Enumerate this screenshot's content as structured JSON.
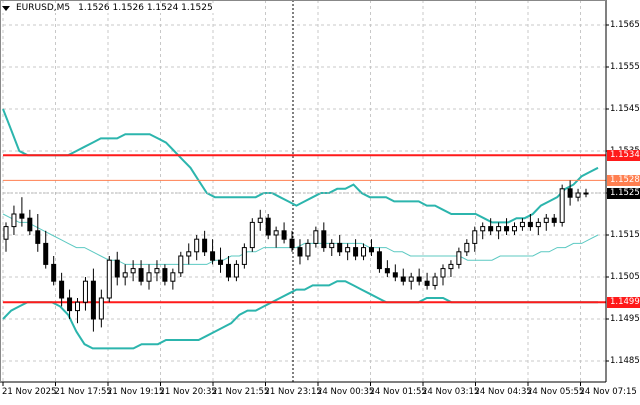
{
  "header": {
    "symbol": "EURUSD,M5",
    "ohlc": "1.1526 1.1526 1.1524 1.1525"
  },
  "colors": {
    "background": "#ffffff",
    "grid": "#c8c8c8",
    "axis": "#000000",
    "band": "#2cb5ad",
    "band_mid": "#5cc9c2",
    "resistance": "#ff1a1a",
    "level_orange": "#ff7f50",
    "price_tag_bg": "#000000",
    "crosshair": "#000000"
  },
  "chart_data": {
    "type": "candlestick",
    "title": "EURUSD,M5",
    "ohlc_display": {
      "open": 1.1526,
      "high": 1.1526,
      "low": 1.1524,
      "close": 1.1525
    },
    "y_ticks": [
      1.1565,
      1.1555,
      1.1545,
      1.1535,
      1.1525,
      1.1515,
      1.1505,
      1.1495,
      1.1485
    ],
    "y_tick_labels": [
      "1.1565",
      "1.1555",
      "1.1545",
      "1.1535",
      "1.1525",
      "1.1515",
      "1.1505",
      "1.1495",
      "1.1485"
    ],
    "ylim": [
      1.1481,
      1.157
    ],
    "x_tick_labels": [
      "21 Nov 2025",
      "21 Nov 17:55",
      "21 Nov 19:15",
      "21 Nov 20:35",
      "21 Nov 21:55",
      "21 Nov 23:15",
      "24 Nov 00:35",
      "24 Nov 01:55",
      "24 Nov 03:15",
      "24 Nov 04:35",
      "24 Nov 05:55",
      "24 Nov 07:15"
    ],
    "horizontal_levels": [
      {
        "price": 1.1534,
        "label": "1.1534",
        "color": "#ff1a1a",
        "width": 2
      },
      {
        "price": 1.1528,
        "label": "1.1528",
        "color": "#ff7f50",
        "width": 1
      },
      {
        "price": 1.1499,
        "label": "1.1499",
        "color": "#ff1a1a",
        "width": 2
      }
    ],
    "current_price": {
      "price": 1.1525,
      "label": "1.1525"
    },
    "grid": true,
    "indicator": "Bollinger Bands",
    "bollinger_upper": [
      1.1545,
      1.154,
      1.1535,
      1.1534,
      1.1534,
      1.1534,
      1.1534,
      1.1534,
      1.1534,
      1.1535,
      1.1536,
      1.1537,
      1.1538,
      1.1538,
      1.1538,
      1.1539,
      1.1539,
      1.1539,
      1.1539,
      1.1538,
      1.1537,
      1.1535,
      1.1533,
      1.1531,
      1.1528,
      1.1525,
      1.1524,
      1.1524,
      1.1524,
      1.1524,
      1.1524,
      1.1524,
      1.1525,
      1.1525,
      1.1524,
      1.1523,
      1.1522,
      1.1523,
      1.1524,
      1.1525,
      1.1525,
      1.1526,
      1.1526,
      1.1527,
      1.1525,
      1.1524,
      1.1524,
      1.1524,
      1.1523,
      1.1523,
      1.1523,
      1.1523,
      1.1522,
      1.1522,
      1.1521,
      1.152,
      1.152,
      1.152,
      1.152,
      1.1519,
      1.1518,
      1.1518,
      1.1518,
      1.1519,
      1.1519,
      1.152,
      1.1522,
      1.1523,
      1.1524,
      1.1526,
      1.1527,
      1.1529,
      1.153,
      1.1531
    ],
    "bollinger_mid": [
      1.152,
      1.1519,
      1.1518,
      1.1518,
      1.1517,
      1.1516,
      1.1515,
      1.1514,
      1.1513,
      1.1512,
      1.1512,
      1.1511,
      1.151,
      1.1509,
      1.1509,
      1.1508,
      1.1508,
      1.1508,
      1.1508,
      1.1508,
      1.1508,
      1.1508,
      1.1508,
      1.1508,
      1.1508,
      1.1508,
      1.1509,
      1.1509,
      1.151,
      1.151,
      1.1511,
      1.1511,
      1.1512,
      1.1512,
      1.1512,
      1.1512,
      1.1512,
      1.1513,
      1.1513,
      1.1513,
      1.1513,
      1.1513,
      1.1513,
      1.1513,
      1.1513,
      1.1512,
      1.1512,
      1.1512,
      1.1511,
      1.1511,
      1.151,
      1.151,
      1.151,
      1.151,
      1.151,
      1.151,
      1.151,
      1.1509,
      1.1509,
      1.1509,
      1.1509,
      1.151,
      1.151,
      1.151,
      1.151,
      1.151,
      1.1511,
      1.1511,
      1.1512,
      1.1512,
      1.1513,
      1.1513,
      1.1514,
      1.1515
    ],
    "bollinger_lower": [
      1.1495,
      1.1497,
      1.1498,
      1.1499,
      1.1499,
      1.1499,
      1.1499,
      1.1498,
      1.1496,
      1.1492,
      1.1489,
      1.1488,
      1.1488,
      1.1488,
      1.1488,
      1.1488,
      1.1488,
      1.1489,
      1.1489,
      1.1489,
      1.149,
      1.149,
      1.149,
      1.149,
      1.149,
      1.1491,
      1.1492,
      1.1493,
      1.1494,
      1.1496,
      1.1497,
      1.1497,
      1.1498,
      1.1499,
      1.15,
      1.1501,
      1.1502,
      1.1502,
      1.1503,
      1.1503,
      1.1503,
      1.1504,
      1.1504,
      1.1503,
      1.1502,
      1.1501,
      1.15,
      1.1499,
      1.1499,
      1.1499,
      1.1499,
      1.1499,
      1.15,
      1.15,
      1.15,
      1.1499,
      1.1499,
      1.1499,
      1.1499,
      1.1499,
      1.1499,
      1.1499,
      1.1499,
      1.1499,
      1.1499,
      1.1499,
      1.1499,
      1.1499,
      1.1499,
      1.1499,
      1.1499,
      1.1499,
      1.1499,
      1.1499
    ],
    "candles": [
      [
        1.1514,
        1.1518,
        1.1511,
        1.1517
      ],
      [
        1.1517,
        1.1522,
        1.1515,
        1.152
      ],
      [
        1.152,
        1.1524,
        1.1517,
        1.1519
      ],
      [
        1.1519,
        1.1521,
        1.1515,
        1.1516
      ],
      [
        1.1516,
        1.152,
        1.1511,
        1.1513
      ],
      [
        1.1513,
        1.1516,
        1.1507,
        1.1508
      ],
      [
        1.1508,
        1.151,
        1.1503,
        1.1504
      ],
      [
        1.1504,
        1.1506,
        1.1498,
        1.15
      ],
      [
        1.15,
        1.1502,
        1.1495,
        1.1497
      ],
      [
        1.1497,
        1.15,
        1.1494,
        1.1499
      ],
      [
        1.1499,
        1.1505,
        1.1497,
        1.1504
      ],
      [
        1.1504,
        1.1507,
        1.1492,
        1.1495
      ],
      [
        1.1495,
        1.1502,
        1.1493,
        1.15
      ],
      [
        1.15,
        1.151,
        1.1499,
        1.1509
      ],
      [
        1.1509,
        1.1511,
        1.1503,
        1.1505
      ],
      [
        1.1505,
        1.1508,
        1.1503,
        1.1506
      ],
      [
        1.1506,
        1.1509,
        1.1504,
        1.1507
      ],
      [
        1.1507,
        1.1509,
        1.1503,
        1.1504
      ],
      [
        1.1504,
        1.1508,
        1.1502,
        1.1506
      ],
      [
        1.1506,
        1.1509,
        1.1504,
        1.1507
      ],
      [
        1.1507,
        1.1508,
        1.1503,
        1.1504
      ],
      [
        1.1504,
        1.1507,
        1.1502,
        1.1506
      ],
      [
        1.1506,
        1.1511,
        1.1505,
        1.151
      ],
      [
        1.151,
        1.1513,
        1.1508,
        1.1511
      ],
      [
        1.1511,
        1.1515,
        1.1509,
        1.1514
      ],
      [
        1.1514,
        1.1516,
        1.151,
        1.1511
      ],
      [
        1.1511,
        1.1514,
        1.1508,
        1.1509
      ],
      [
        1.1509,
        1.1512,
        1.1506,
        1.1508
      ],
      [
        1.1508,
        1.151,
        1.1504,
        1.1505
      ],
      [
        1.1505,
        1.1509,
        1.1504,
        1.1508
      ],
      [
        1.1508,
        1.1513,
        1.1507,
        1.1512
      ],
      [
        1.1512,
        1.1519,
        1.1511,
        1.1518
      ],
      [
        1.1518,
        1.1521,
        1.1516,
        1.1519
      ],
      [
        1.1519,
        1.152,
        1.1514,
        1.1515
      ],
      [
        1.1515,
        1.1517,
        1.1512,
        1.1516
      ],
      [
        1.1516,
        1.1518,
        1.1513,
        1.1514
      ],
      [
        1.1514,
        1.1516,
        1.1511,
        1.1512
      ],
      [
        1.1512,
        1.1514,
        1.1508,
        1.151
      ],
      [
        1.151,
        1.1514,
        1.1509,
        1.1513
      ],
      [
        1.1513,
        1.1517,
        1.1512,
        1.1516
      ],
      [
        1.1516,
        1.1518,
        1.1511,
        1.1512
      ],
      [
        1.1512,
        1.1514,
        1.151,
        1.1513
      ],
      [
        1.1513,
        1.1515,
        1.151,
        1.1511
      ],
      [
        1.1511,
        1.1513,
        1.1509,
        1.1512
      ],
      [
        1.1512,
        1.1514,
        1.1509,
        1.151
      ],
      [
        1.151,
        1.1513,
        1.1509,
        1.1512
      ],
      [
        1.1512,
        1.1514,
        1.151,
        1.1511
      ],
      [
        1.1511,
        1.1512,
        1.1506,
        1.1507
      ],
      [
        1.1507,
        1.1509,
        1.1505,
        1.1506
      ],
      [
        1.1506,
        1.1508,
        1.1504,
        1.1505
      ],
      [
        1.1505,
        1.1507,
        1.1503,
        1.1504
      ],
      [
        1.1504,
        1.1506,
        1.1502,
        1.1505
      ],
      [
        1.1505,
        1.1507,
        1.1503,
        1.1504
      ],
      [
        1.1504,
        1.1506,
        1.1502,
        1.1503
      ],
      [
        1.1503,
        1.1506,
        1.1502,
        1.1505
      ],
      [
        1.1505,
        1.1508,
        1.1503,
        1.1507
      ],
      [
        1.1507,
        1.1509,
        1.1505,
        1.1508
      ],
      [
        1.1508,
        1.1512,
        1.1507,
        1.1511
      ],
      [
        1.1511,
        1.1514,
        1.151,
        1.1513
      ],
      [
        1.1513,
        1.1517,
        1.1511,
        1.1516
      ],
      [
        1.1516,
        1.1518,
        1.1514,
        1.1517
      ],
      [
        1.1517,
        1.1519,
        1.1515,
        1.1516
      ],
      [
        1.1516,
        1.1518,
        1.1514,
        1.1517
      ],
      [
        1.1517,
        1.1519,
        1.1515,
        1.1516
      ],
      [
        1.1516,
        1.1518,
        1.1515,
        1.1517
      ],
      [
        1.1517,
        1.1519,
        1.1516,
        1.1518
      ],
      [
        1.1518,
        1.152,
        1.1516,
        1.1517
      ],
      [
        1.1517,
        1.1519,
        1.1515,
        1.1518
      ],
      [
        1.1518,
        1.152,
        1.1516,
        1.1519
      ],
      [
        1.1519,
        1.152,
        1.1517,
        1.1518
      ],
      [
        1.1518,
        1.1527,
        1.1517,
        1.1526
      ],
      [
        1.1526,
        1.1528,
        1.1522,
        1.1524
      ],
      [
        1.1524,
        1.1526,
        1.1523,
        1.1525
      ],
      [
        1.1525,
        1.1526,
        1.1524,
        1.1525
      ]
    ]
  }
}
